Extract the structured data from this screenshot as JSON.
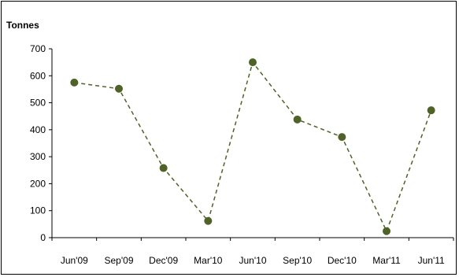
{
  "chart_data": {
    "type": "line",
    "title": "",
    "xlabel": "",
    "ylabel": "Tonnes",
    "categories": [
      "Jun'09",
      "Sep'09",
      "Dec'09",
      "Mar'10",
      "Jun'10",
      "Sep'10",
      "Dec'10",
      "Mar'11",
      "Jun'11"
    ],
    "series": [
      {
        "values": [
          575,
          552,
          258,
          62,
          650,
          438,
          373,
          24,
          472
        ],
        "color": "#4f6228",
        "line_style": "dashed"
      }
    ],
    "ylim": [
      0,
      700
    ],
    "yticks": [
      0,
      100,
      200,
      300,
      400,
      500,
      600,
      700
    ],
    "grid": false,
    "legend": "none"
  }
}
